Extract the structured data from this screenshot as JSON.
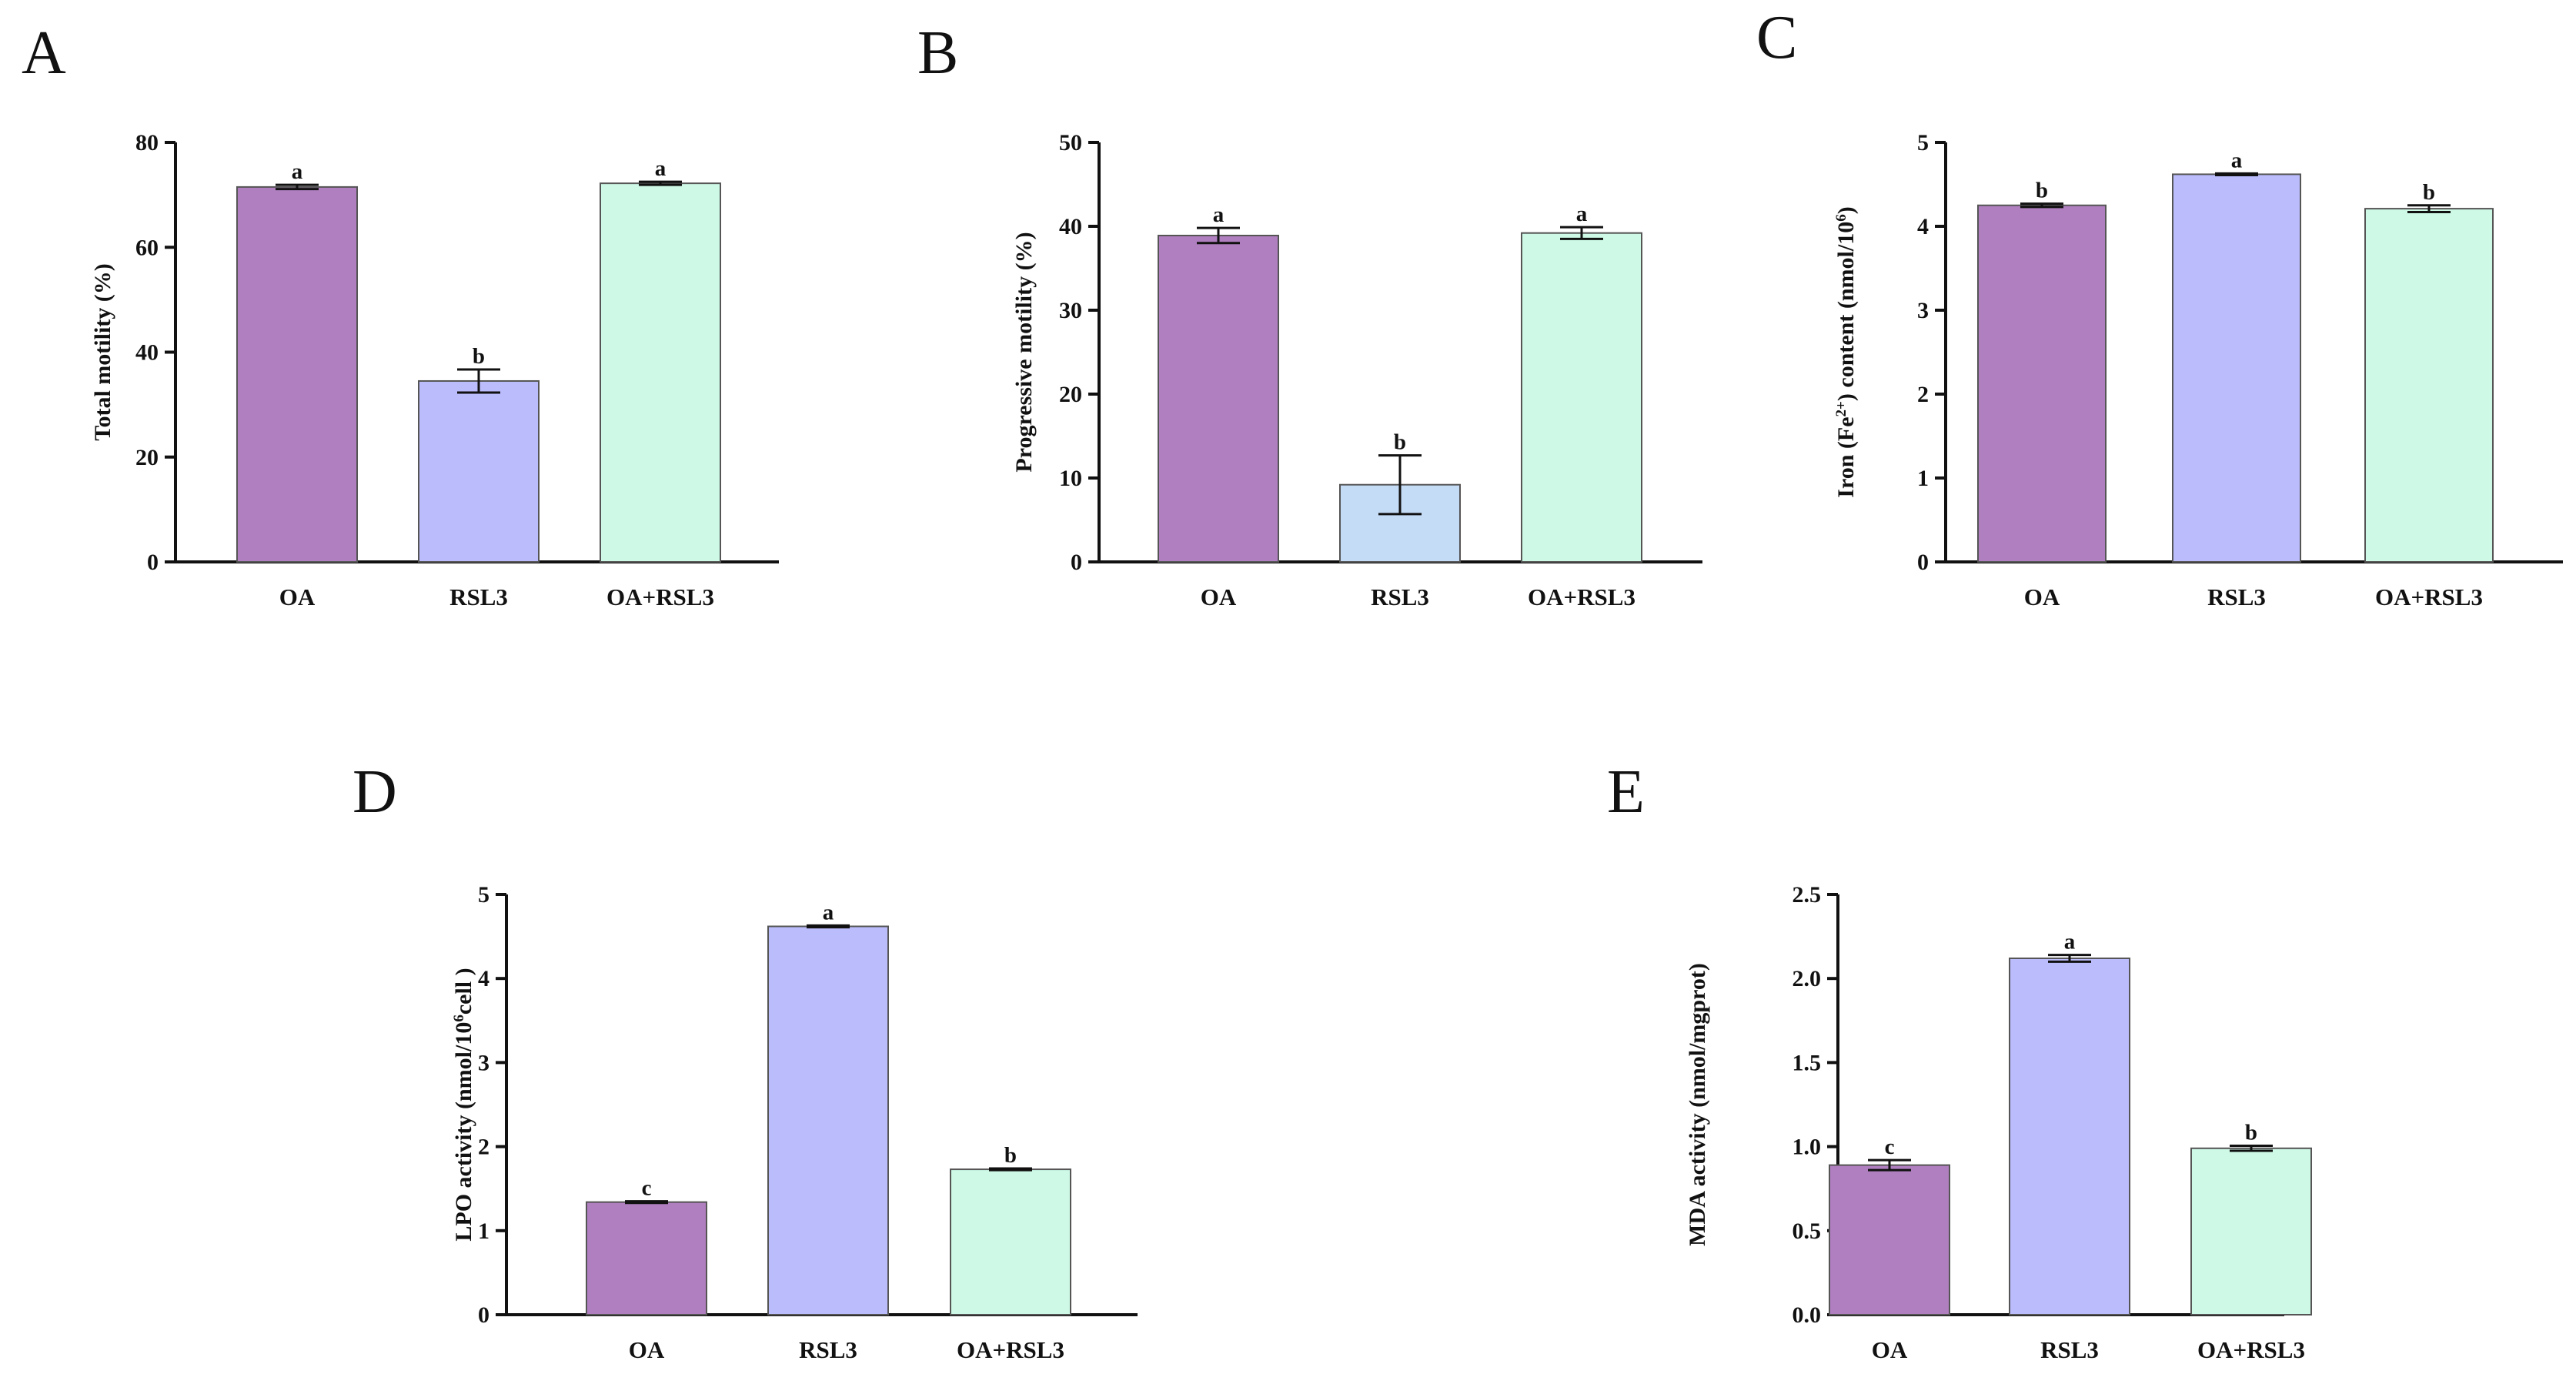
{
  "chart_data": [
    {
      "type": "bar",
      "panel": "A",
      "ylabel_parts": [
        {
          "t": "Total motility (%)"
        }
      ],
      "ylim": [
        0,
        80
      ],
      "yticks": [
        "0",
        "20",
        "40",
        "60",
        "80"
      ],
      "categories": [
        "OA",
        "RSL3",
        "OA+RSL3"
      ],
      "values": [
        71.5,
        34.5,
        72.2
      ],
      "errors": [
        0.4,
        2.2,
        0.3
      ],
      "letters": [
        "a",
        "b",
        "a"
      ],
      "colors": [
        "#b07fc0",
        "#bbbcfc",
        "#cdf9e6"
      ]
    },
    {
      "type": "bar",
      "panel": "B",
      "ylabel_parts": [
        {
          "t": "Progressive motility (%)"
        }
      ],
      "ylim": [
        0,
        50
      ],
      "yticks": [
        "0",
        "10",
        "20",
        "30",
        "40",
        "50"
      ],
      "categories": [
        "OA",
        "RSL3",
        "OA+RSL3"
      ],
      "values": [
        38.9,
        9.2,
        39.2
      ],
      "errors": [
        0.9,
        3.5,
        0.7
      ],
      "letters": [
        "a",
        "b",
        "a"
      ],
      "colors": [
        "#b07fc0",
        "#c5dcf7",
        "#cdf9e6"
      ]
    },
    {
      "type": "bar",
      "panel": "C",
      "ylabel_parts": [
        {
          "t": "Iron (Fe"
        },
        {
          "t": "2+",
          "sup": true
        },
        {
          "t": ") content (nmol/10"
        },
        {
          "t": "6",
          "sup": true
        },
        {
          "t": ")"
        }
      ],
      "ylim": [
        0,
        5
      ],
      "yticks": [
        "0",
        "1",
        "2",
        "3",
        "4",
        "5"
      ],
      "categories": [
        "OA",
        "RSL3",
        "OA+RSL3"
      ],
      "values": [
        4.25,
        4.62,
        4.21
      ],
      "errors": [
        0.02,
        0.01,
        0.04
      ],
      "letters": [
        "b",
        "a",
        "b"
      ],
      "colors": [
        "#b07fc0",
        "#bbbcfc",
        "#cdf9e6"
      ]
    },
    {
      "type": "bar",
      "panel": "D",
      "ylabel_parts": [
        {
          "t": "LPO activity (nmol/10"
        },
        {
          "t": "6",
          "sup": true
        },
        {
          "t": "cell )"
        }
      ],
      "ylim": [
        0,
        5
      ],
      "yticks": [
        "0",
        "1",
        "2",
        "3",
        "4",
        "5"
      ],
      "categories": [
        "OA",
        "RSL3",
        "OA+RSL3"
      ],
      "values": [
        1.34,
        4.62,
        1.73
      ],
      "errors": [
        0.01,
        0.01,
        0.01
      ],
      "letters": [
        "c",
        "a",
        "b"
      ],
      "colors": [
        "#b07fc0",
        "#bbbcfc",
        "#cdf9e6"
      ]
    },
    {
      "type": "bar",
      "panel": "E",
      "ylabel_parts": [
        {
          "t": "MDA activity (nmol/mgprot)"
        }
      ],
      "ylim": [
        0,
        2.5
      ],
      "yticks": [
        "0.0",
        "0.5",
        "1.0",
        "1.5",
        "2.0",
        "2.5"
      ],
      "categories": [
        "OA",
        "RSL3",
        "OA+RSL3"
      ],
      "values": [
        0.89,
        2.12,
        0.99
      ],
      "errors": [
        0.03,
        0.02,
        0.015
      ],
      "letters": [
        "c",
        "a",
        "b"
      ],
      "colors": [
        "#b07fc0",
        "#bbbcfc",
        "#cdf9e6"
      ]
    }
  ]
}
